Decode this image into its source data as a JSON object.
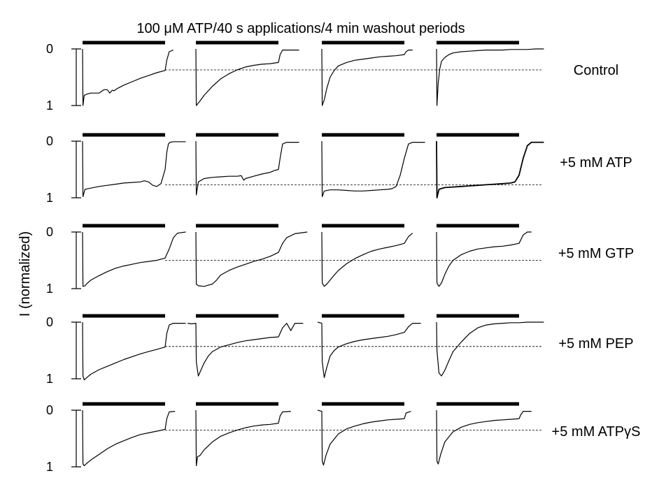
{
  "figure": {
    "title": "100 μM ATP/40 s applications/4 min washout periods",
    "ylabel": "I (normalized)"
  },
  "chart_data": {
    "type": "line",
    "title": "100 μM ATP/40 s applications/4 min washout periods",
    "xlabel": "",
    "ylabel": "I (normalized)",
    "ylim": [
      0,
      1
    ],
    "yticks": [
      "0",
      "1"
    ],
    "y_inverted": true,
    "grid": false,
    "legend": "none",
    "panel_columns": 4,
    "application_duration_s": 40,
    "washout_period_min": 4,
    "stimulus_bar_color": "#000000",
    "trace_color": "#000000",
    "x_fraction_note": "x = fraction of the 40 s application (0 = start, 1 = end); values > 1 are after washout starts",
    "rows": [
      {
        "condition": "Control",
        "reference_level": 0.37,
        "traces": [
          {
            "x": [
              0,
              0.005,
              0.02,
              0.05,
              0.1,
              0.2,
              0.26,
              0.3,
              0.33,
              0.36,
              0.38,
              0.42,
              0.5,
              0.6,
              0.7,
              0.8,
              0.9,
              1.0,
              1.02,
              1.05,
              1.1
            ],
            "y": [
              0,
              1.0,
              0.82,
              0.8,
              0.78,
              0.78,
              0.72,
              0.72,
              0.78,
              0.73,
              0.74,
              0.7,
              0.64,
              0.58,
              0.52,
              0.47,
              0.42,
              0.38,
              0.2,
              0.05,
              0.02
            ]
          },
          {
            "x": [
              0,
              0.005,
              0.05,
              0.1,
              0.2,
              0.3,
              0.4,
              0.5,
              0.6,
              0.7,
              0.8,
              0.9,
              1.0,
              1.02,
              1.05,
              1.1,
              1.25
            ],
            "y": [
              0,
              1.0,
              0.92,
              0.82,
              0.66,
              0.53,
              0.44,
              0.37,
              0.32,
              0.29,
              0.27,
              0.26,
              0.24,
              0.1,
              0.02,
              0.02,
              0.02
            ]
          },
          {
            "x": [
              0,
              0.005,
              0.03,
              0.06,
              0.1,
              0.15,
              0.2,
              0.3,
              0.4,
              0.5,
              0.6,
              0.7,
              0.8,
              0.9,
              1.0,
              1.02,
              1.05,
              1.1
            ],
            "y": [
              0,
              1.0,
              0.9,
              0.7,
              0.5,
              0.38,
              0.3,
              0.24,
              0.2,
              0.18,
              0.16,
              0.14,
              0.13,
              0.12,
              0.1,
              0.05,
              0.02,
              0.02
            ]
          },
          {
            "x": [
              0,
              0.005,
              0.02,
              0.04,
              0.06,
              0.1,
              0.15,
              0.2,
              0.3,
              0.4,
              0.5,
              0.6,
              0.7,
              0.8,
              0.9,
              1.0,
              1.05,
              1.1,
              1.2,
              1.3
            ],
            "y": [
              0,
              1.0,
              0.6,
              0.35,
              0.22,
              0.15,
              0.1,
              0.07,
              0.05,
              0.04,
              0.03,
              0.02,
              0.02,
              0.02,
              0.01,
              0.01,
              0.01,
              0.01,
              0.0,
              0.0
            ]
          }
        ]
      },
      {
        "condition": "+5 mM ATP",
        "reference_level": 0.77,
        "traces": [
          {
            "x": [
              0,
              0.005,
              0.03,
              0.1,
              0.2,
              0.3,
              0.4,
              0.5,
              0.6,
              0.7,
              0.75,
              0.8,
              0.85,
              0.9,
              0.95,
              1.0,
              1.02,
              1.04,
              1.06,
              1.1,
              1.25
            ],
            "y": [
              0,
              0.98,
              0.85,
              0.83,
              0.8,
              0.78,
              0.76,
              0.74,
              0.73,
              0.72,
              0.7,
              0.72,
              0.78,
              0.8,
              0.75,
              0.5,
              0.2,
              0.05,
              0.02,
              0.01,
              0.01
            ]
          },
          {
            "x": [
              0,
              0.005,
              0.03,
              0.1,
              0.2,
              0.3,
              0.4,
              0.5,
              0.55,
              0.58,
              0.6,
              0.7,
              0.8,
              0.9,
              0.95,
              1.0,
              1.02,
              1.05,
              1.1,
              1.25
            ],
            "y": [
              0,
              0.95,
              0.72,
              0.66,
              0.64,
              0.63,
              0.62,
              0.62,
              0.61,
              0.69,
              0.66,
              0.62,
              0.58,
              0.55,
              0.52,
              0.5,
              0.3,
              0.05,
              0.02,
              0.02
            ]
          },
          {
            "x": [
              0,
              0.005,
              0.03,
              0.1,
              0.2,
              0.3,
              0.4,
              0.5,
              0.6,
              0.7,
              0.8,
              0.85,
              0.9,
              0.95,
              1.0,
              1.05,
              1.1,
              1.25
            ],
            "y": [
              0,
              0.98,
              0.88,
              0.86,
              0.86,
              0.87,
              0.88,
              0.88,
              0.87,
              0.86,
              0.85,
              0.84,
              0.8,
              0.6,
              0.3,
              0.05,
              0.02,
              0.02
            ]
          },
          {
            "x": [
              0,
              0.005,
              0.03,
              0.1,
              0.2,
              0.3,
              0.4,
              0.5,
              0.6,
              0.7,
              0.8,
              0.9,
              0.95,
              1.0,
              1.05,
              1.1,
              1.15,
              1.3
            ],
            "y": [
              0,
              1.0,
              0.85,
              0.82,
              0.81,
              0.8,
              0.79,
              0.78,
              0.77,
              0.76,
              0.75,
              0.74,
              0.72,
              0.6,
              0.3,
              0.08,
              0.02,
              0.02
            ]
          }
        ]
      },
      {
        "condition": "+5 mM GTP",
        "reference_level": 0.5,
        "traces": [
          {
            "x": [
              0,
              0.005,
              0.03,
              0.06,
              0.1,
              0.2,
              0.3,
              0.4,
              0.5,
              0.6,
              0.7,
              0.8,
              0.9,
              1.0,
              1.05,
              1.1,
              1.15,
              1.25
            ],
            "y": [
              0,
              0.96,
              0.95,
              0.9,
              0.85,
              0.77,
              0.7,
              0.64,
              0.6,
              0.57,
              0.54,
              0.52,
              0.5,
              0.46,
              0.3,
              0.1,
              0.02,
              0.0
            ]
          },
          {
            "x": [
              0,
              0.005,
              0.03,
              0.1,
              0.15,
              0.2,
              0.25,
              0.3,
              0.4,
              0.5,
              0.6,
              0.7,
              0.8,
              0.9,
              1.0,
              1.05,
              1.1,
              1.2,
              1.35
            ],
            "y": [
              0,
              0.92,
              0.95,
              0.96,
              0.94,
              0.92,
              0.85,
              0.76,
              0.68,
              0.62,
              0.57,
              0.52,
              0.48,
              0.43,
              0.36,
              0.2,
              0.1,
              0.03,
              0.0
            ]
          },
          {
            "x": [
              0,
              0.005,
              0.03,
              0.06,
              0.1,
              0.15,
              0.2,
              0.3,
              0.4,
              0.5,
              0.6,
              0.7,
              0.8,
              0.9,
              1.0,
              1.05,
              1.1
            ],
            "y": [
              0,
              0.9,
              0.96,
              0.92,
              0.85,
              0.76,
              0.68,
              0.56,
              0.47,
              0.4,
              0.34,
              0.3,
              0.27,
              0.24,
              0.2,
              0.08,
              0.02
            ]
          },
          {
            "x": [
              0,
              0.005,
              0.03,
              0.06,
              0.1,
              0.15,
              0.2,
              0.3,
              0.4,
              0.5,
              0.6,
              0.7,
              0.8,
              0.9,
              1.0,
              1.05,
              1.1,
              1.15
            ],
            "y": [
              0,
              0.9,
              0.96,
              0.9,
              0.75,
              0.6,
              0.5,
              0.4,
              0.34,
              0.3,
              0.28,
              0.26,
              0.25,
              0.23,
              0.2,
              0.05,
              0.0,
              0.0
            ]
          }
        ]
      },
      {
        "condition": "+5 mM PEP",
        "reference_level": 0.43,
        "traces": [
          {
            "x": [
              0,
              0.005,
              0.02,
              0.05,
              0.1,
              0.2,
              0.3,
              0.4,
              0.5,
              0.6,
              0.7,
              0.8,
              0.9,
              1.0,
              1.02,
              1.05,
              1.1,
              1.25
            ],
            "y": [
              0,
              0.95,
              1.02,
              0.98,
              0.92,
              0.84,
              0.78,
              0.72,
              0.66,
              0.61,
              0.56,
              0.52,
              0.48,
              0.44,
              0.2,
              0.05,
              0.02,
              0.02
            ]
          },
          {
            "x": [
              -0.1,
              -0.05,
              0,
              0.005,
              0.03,
              0.06,
              0.1,
              0.15,
              0.2,
              0.3,
              0.4,
              0.5,
              0.6,
              0.7,
              0.8,
              0.9,
              1.0,
              1.05,
              1.1,
              1.15,
              1.2,
              1.3
            ],
            "y": [
              0.02,
              0.03,
              0.02,
              0.7,
              0.95,
              0.85,
              0.72,
              0.6,
              0.52,
              0.44,
              0.4,
              0.36,
              0.33,
              0.31,
              0.29,
              0.27,
              0.26,
              0.1,
              0.02,
              0.15,
              0.02,
              0.02
            ]
          },
          {
            "x": [
              -0.05,
              0,
              0.005,
              0.03,
              0.06,
              0.1,
              0.15,
              0.2,
              0.3,
              0.4,
              0.5,
              0.6,
              0.7,
              0.8,
              0.9,
              1.0,
              1.05,
              1.1,
              1.2
            ],
            "y": [
              0.0,
              0.02,
              0.7,
              0.98,
              0.8,
              0.6,
              0.5,
              0.44,
              0.38,
              0.34,
              0.31,
              0.29,
              0.27,
              0.25,
              0.22,
              0.18,
              0.08,
              0.02,
              0.02
            ]
          },
          {
            "x": [
              0,
              0.005,
              0.03,
              0.06,
              0.1,
              0.15,
              0.2,
              0.3,
              0.4,
              0.5,
              0.6,
              0.7,
              0.8,
              0.9,
              1.0,
              1.1,
              1.2,
              1.3
            ],
            "y": [
              0,
              0.5,
              0.9,
              0.95,
              0.85,
              0.68,
              0.52,
              0.35,
              0.2,
              0.1,
              0.05,
              0.03,
              0.02,
              0.01,
              0.01,
              0.0,
              0.0,
              0.0
            ]
          }
        ]
      },
      {
        "condition": "+5 mM ATPγS",
        "reference_level": 0.35,
        "traces": [
          {
            "x": [
              0,
              0.005,
              0.02,
              0.05,
              0.1,
              0.2,
              0.3,
              0.4,
              0.5,
              0.6,
              0.7,
              0.8,
              0.9,
              1.0,
              1.02,
              1.05,
              1.12
            ],
            "y": [
              0,
              0.95,
              0.98,
              0.94,
              0.88,
              0.78,
              0.68,
              0.6,
              0.54,
              0.48,
              0.43,
              0.4,
              0.37,
              0.34,
              0.15,
              0.03,
              0.02
            ]
          },
          {
            "x": [
              0,
              0.005,
              0.02,
              0.05,
              0.1,
              0.2,
              0.3,
              0.4,
              0.5,
              0.6,
              0.7,
              0.8,
              0.9,
              1.0,
              1.02,
              1.05,
              1.15
            ],
            "y": [
              0,
              0.98,
              0.82,
              0.8,
              0.7,
              0.56,
              0.46,
              0.4,
              0.35,
              0.31,
              0.28,
              0.26,
              0.25,
              0.23,
              0.1,
              0.03,
              0.02
            ]
          },
          {
            "x": [
              -0.05,
              0,
              0.005,
              0.02,
              0.05,
              0.1,
              0.2,
              0.3,
              0.4,
              0.5,
              0.6,
              0.7,
              0.8,
              0.9,
              1.0,
              1.02,
              1.08
            ],
            "y": [
              0.0,
              0.02,
              0.9,
              0.97,
              0.8,
              0.6,
              0.42,
              0.33,
              0.28,
              0.24,
              0.21,
              0.19,
              0.17,
              0.16,
              0.15,
              0.05,
              0.02
            ]
          },
          {
            "x": [
              0,
              0.005,
              0.02,
              0.05,
              0.1,
              0.2,
              0.3,
              0.4,
              0.5,
              0.6,
              0.7,
              0.8,
              0.9,
              1.0,
              1.02,
              1.05,
              1.15
            ],
            "y": [
              0,
              0.9,
              0.95,
              0.78,
              0.56,
              0.38,
              0.3,
              0.25,
              0.22,
              0.2,
              0.18,
              0.17,
              0.16,
              0.15,
              0.08,
              0.02,
              0.02
            ]
          }
        ]
      }
    ]
  }
}
